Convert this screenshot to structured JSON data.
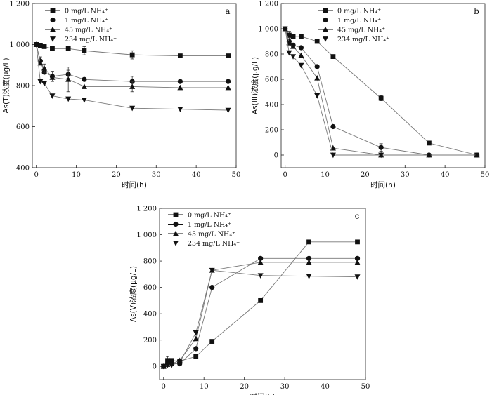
{
  "chart_data": [
    {
      "type": "line",
      "panel_label": "a",
      "xlabel": "时间(h)",
      "ylabel": "As(T)浓度(μg/L)",
      "xlim": [
        -1,
        50
      ],
      "ylim": [
        400,
        1200
      ],
      "xticks": [
        0,
        10,
        20,
        30,
        40,
        50
      ],
      "yticks": [
        400,
        600,
        800,
        1000,
        1200
      ],
      "ytick_labels": [
        "400",
        "600",
        "800",
        "1 000",
        "1 200"
      ],
      "legend_position": "top-left",
      "series": [
        {
          "name": "0 mg/L NH₄⁺",
          "marker": "square",
          "x": [
            0,
            1,
            2,
            4,
            8,
            12,
            24,
            36,
            48
          ],
          "y": [
            1000,
            995,
            990,
            980,
            980,
            970,
            950,
            945,
            945
          ],
          "err": [
            0,
            0,
            0,
            0,
            0,
            20,
            20,
            0,
            0
          ]
        },
        {
          "name": "1 mg/L NH₄⁺",
          "marker": "circle",
          "x": [
            0,
            1,
            2,
            4,
            8,
            12,
            24,
            36,
            48
          ],
          "y": [
            1000,
            920,
            865,
            845,
            855,
            830,
            820,
            820,
            820
          ],
          "err": [
            0,
            20,
            0,
            25,
            20,
            0,
            25,
            0,
            0
          ]
        },
        {
          "name": "45 mg/L NH₄⁺",
          "marker": "triangle-up",
          "x": [
            0,
            1,
            2,
            4,
            8,
            12,
            24,
            36,
            48
          ],
          "y": [
            1000,
            910,
            885,
            840,
            830,
            795,
            795,
            790,
            790
          ],
          "err": [
            0,
            0,
            20,
            0,
            60,
            0,
            25,
            0,
            0
          ]
        },
        {
          "name": "234 mg/L NH₄⁺",
          "marker": "triangle-down",
          "x": [
            0,
            1,
            2,
            4,
            8,
            12,
            24,
            36,
            48
          ],
          "y": [
            1000,
            820,
            810,
            750,
            735,
            730,
            690,
            685,
            680
          ],
          "err": [
            0,
            0,
            0,
            0,
            0,
            0,
            0,
            0,
            0
          ]
        }
      ]
    },
    {
      "type": "line",
      "panel_label": "b",
      "xlabel": "时间(h)",
      "ylabel": "As(III)浓度(μg/L)",
      "xlim": [
        -1,
        50
      ],
      "ylim": [
        -100,
        1200
      ],
      "xticks": [
        0,
        10,
        20,
        30,
        40,
        50
      ],
      "yticks": [
        0,
        200,
        400,
        600,
        800,
        1000,
        1200
      ],
      "ytick_labels": [
        "0",
        "200",
        "400",
        "600",
        "800",
        "1 000",
        "1 200"
      ],
      "legend_position": "top-right",
      "series": [
        {
          "name": "0 mg/L NH₄⁺",
          "marker": "square",
          "x": [
            0,
            1,
            2,
            4,
            8,
            12,
            24,
            36,
            48
          ],
          "y": [
            1000,
            950,
            940,
            940,
            900,
            780,
            450,
            95,
            0
          ],
          "err": [
            0,
            30,
            0,
            0,
            0,
            0,
            20,
            0,
            0
          ]
        },
        {
          "name": "1 mg/L NH₄⁺",
          "marker": "circle",
          "x": [
            0,
            1,
            2,
            4,
            8,
            12,
            24,
            36,
            48
          ],
          "y": [
            1000,
            900,
            870,
            850,
            700,
            225,
            60,
            0,
            0
          ],
          "err": [
            0,
            30,
            0,
            0,
            0,
            0,
            30,
            0,
            0
          ]
        },
        {
          "name": "45 mg/L NH₄⁺",
          "marker": "triangle-up",
          "x": [
            0,
            1,
            2,
            4,
            8,
            12,
            24,
            36,
            48
          ],
          "y": [
            1000,
            890,
            860,
            790,
            610,
            55,
            0,
            0,
            0
          ],
          "err": [
            0,
            0,
            0,
            0,
            0,
            0,
            0,
            0,
            0
          ]
        },
        {
          "name": "234 mg/L NH₄⁺",
          "marker": "triangle-down",
          "x": [
            0,
            1,
            2,
            4,
            8,
            12,
            24
          ],
          "y": [
            1000,
            810,
            780,
            710,
            470,
            0,
            0
          ],
          "err": [
            0,
            0,
            0,
            0,
            0,
            0,
            0
          ]
        }
      ]
    },
    {
      "type": "line",
      "panel_label": "c",
      "xlabel": "时间(h)",
      "ylabel": "As(V)浓度(μg/L)",
      "xlim": [
        -1,
        50
      ],
      "ylim": [
        -100,
        1200
      ],
      "xticks": [
        0,
        10,
        20,
        30,
        40,
        50
      ],
      "yticks": [
        0,
        200,
        400,
        600,
        800,
        1000,
        1200
      ],
      "ytick_labels": [
        "0",
        "200",
        "400",
        "600",
        "800",
        "1 000",
        "1 200"
      ],
      "legend_position": "top-left",
      "series": [
        {
          "name": "0 mg/L NH₄⁺",
          "marker": "square",
          "x": [
            0,
            1,
            2,
            4,
            8,
            12,
            24,
            36,
            48
          ],
          "y": [
            0,
            45,
            45,
            40,
            75,
            190,
            500,
            945,
            945
          ],
          "err": [
            0,
            30,
            0,
            0,
            0,
            0,
            0,
            0,
            0
          ]
        },
        {
          "name": "1 mg/L NH₄⁺",
          "marker": "circle",
          "x": [
            0,
            1,
            2,
            4,
            8,
            12,
            24,
            36,
            48
          ],
          "y": [
            0,
            20,
            20,
            20,
            135,
            600,
            820,
            820,
            820
          ],
          "err": [
            0,
            0,
            0,
            0,
            0,
            0,
            0,
            0,
            0
          ]
        },
        {
          "name": "45 mg/L NH₄⁺",
          "marker": "triangle-up",
          "x": [
            0,
            1,
            2,
            4,
            8,
            12,
            24,
            36,
            48
          ],
          "y": [
            0,
            15,
            20,
            45,
            210,
            730,
            790,
            790,
            790
          ],
          "err": [
            0,
            0,
            0,
            0,
            0,
            0,
            0,
            0,
            0
          ]
        },
        {
          "name": "234 mg/L NH₄⁺",
          "marker": "triangle-down",
          "x": [
            0,
            1,
            2,
            4,
            8,
            12,
            24,
            36,
            48
          ],
          "y": [
            0,
            10,
            10,
            30,
            255,
            730,
            690,
            685,
            680
          ],
          "err": [
            0,
            0,
            0,
            0,
            0,
            0,
            0,
            0,
            0
          ]
        }
      ]
    }
  ]
}
